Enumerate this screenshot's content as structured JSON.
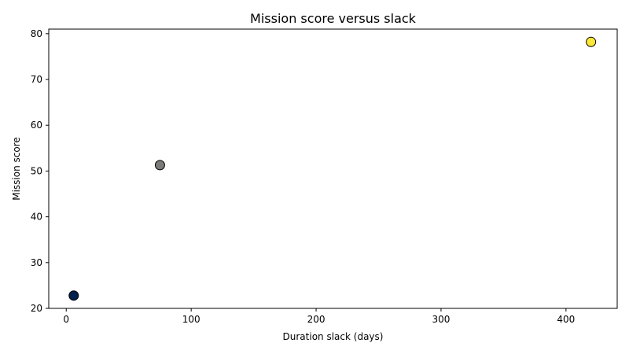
{
  "chart_data": {
    "type": "scatter",
    "title": "Mission score versus slack",
    "xlabel": "Duration slack (days)",
    "ylabel": "Mission score",
    "xlim": [
      -14,
      441
    ],
    "ylim": [
      20,
      81
    ],
    "xticks": [
      0,
      100,
      200,
      300,
      400
    ],
    "yticks": [
      20,
      30,
      40,
      50,
      60,
      70,
      80
    ],
    "grid": false,
    "points": [
      {
        "x": 6,
        "y": 22.8,
        "color": "#00204d"
      },
      {
        "x": 75,
        "y": 51.3,
        "color": "#7c7b78"
      },
      {
        "x": 420,
        "y": 78.2,
        "color": "#fde737"
      }
    ]
  }
}
